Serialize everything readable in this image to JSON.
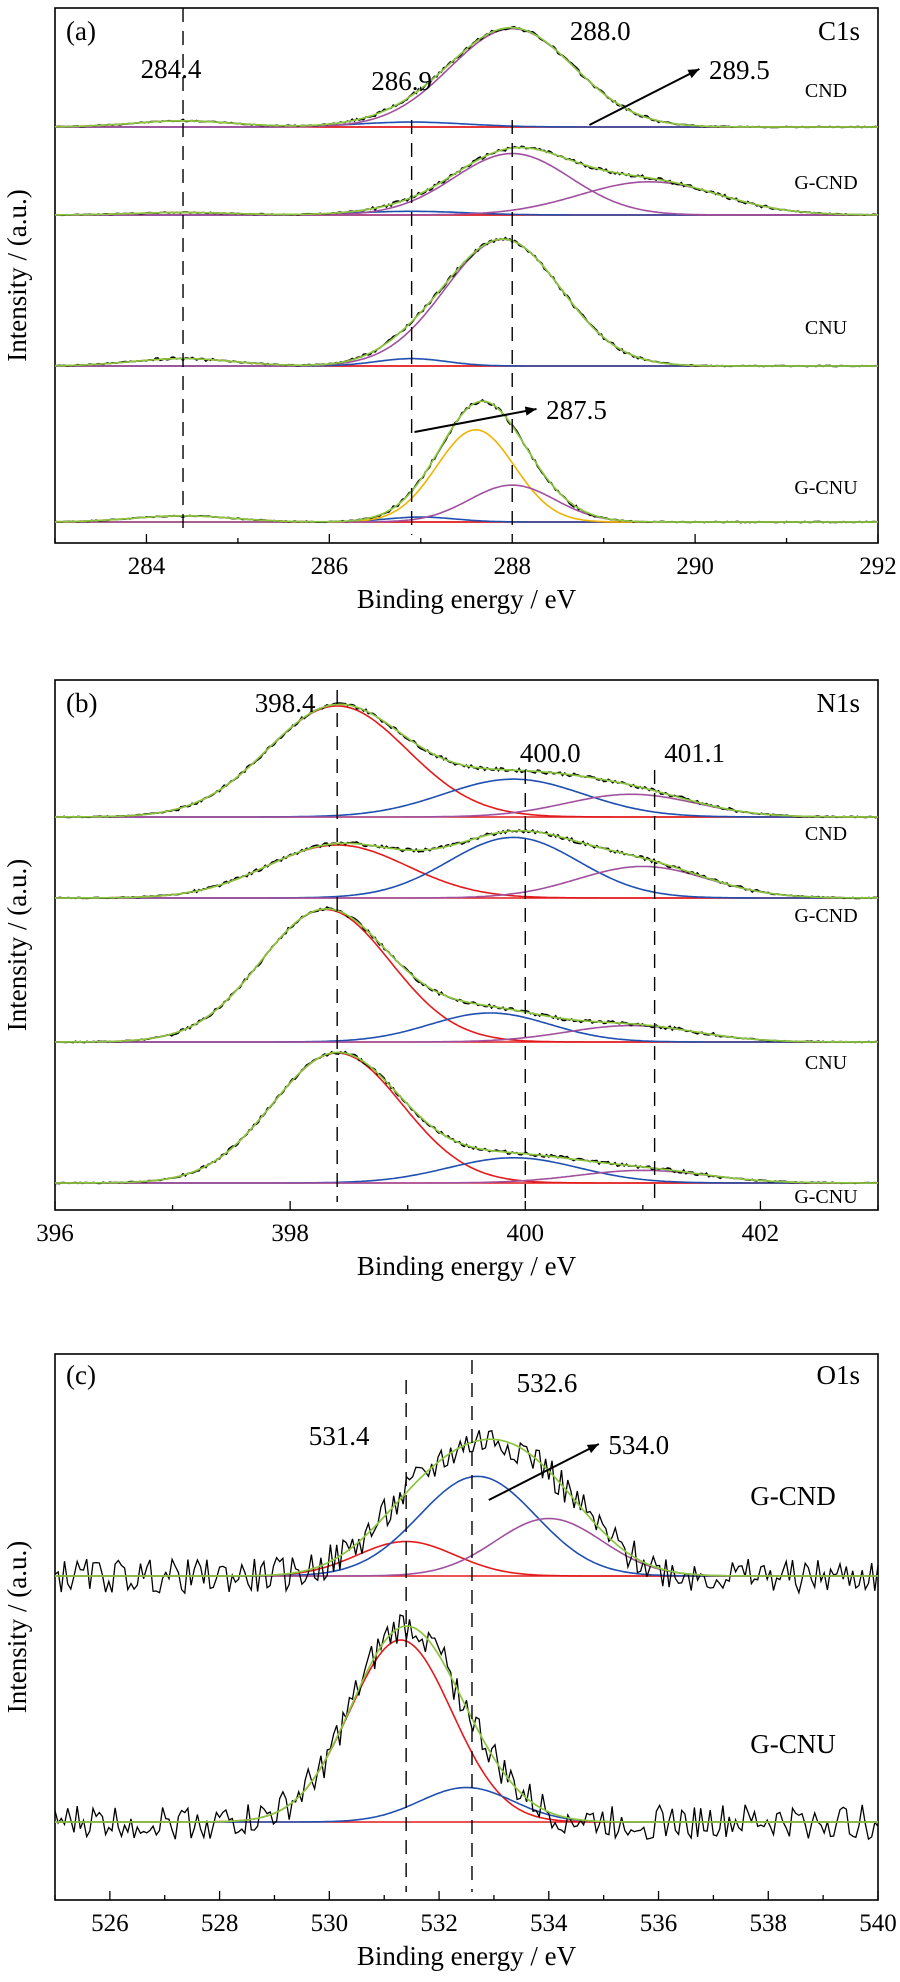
{
  "chart_data": [
    {
      "type": "line",
      "panel_label": "(a)",
      "element": "C1s",
      "xlabel": "Binding energy / eV",
      "ylabel": "Intensity / (a.u.)",
      "xlim": [
        283,
        292
      ],
      "xticks": [
        284,
        286,
        288,
        290,
        292
      ],
      "ylim": [
        0,
        4.35
      ],
      "grid": false,
      "colors": {
        "raw": "#000000",
        "envelope": "#8cc63f",
        "red": "#e31a1c",
        "blue": "#1f4fb0",
        "magenta": "#a0509e",
        "orange": "#f0b400"
      },
      "reference_lines": [
        284.4,
        286.9,
        288.0
      ],
      "annotations": [
        {
          "text": "284.4",
          "x": 284.4
        },
        {
          "text": "286.9",
          "x": 286.9
        },
        {
          "text": "288.0",
          "x": 288.0
        },
        {
          "text": "289.5",
          "x": 289.5,
          "arrow": true
        },
        {
          "text": "287.5",
          "x": 287.5,
          "arrow": true
        }
      ],
      "samples": [
        {
          "name": "CND",
          "peaks": [
            {
              "center": 284.4,
              "height": 0.05,
              "fwhm": 1.3,
              "color": "red"
            },
            {
              "center": 286.9,
              "height": 0.04,
              "fwhm": 1.4,
              "color": "blue"
            },
            {
              "center": 288.0,
              "height": 0.8,
              "fwhm": 1.6,
              "color": "magenta"
            }
          ]
        },
        {
          "name": "G-CND",
          "peaks": [
            {
              "center": 284.4,
              "height": 0.02,
              "fwhm": 1.3,
              "color": "red"
            },
            {
              "center": 286.9,
              "height": 0.03,
              "fwhm": 1.4,
              "color": "blue"
            },
            {
              "center": 288.0,
              "height": 0.5,
              "fwhm": 1.5,
              "color": "magenta"
            },
            {
              "center": 289.5,
              "height": 0.27,
              "fwhm": 1.8,
              "color": "magenta"
            }
          ]
        },
        {
          "name": "CNU",
          "peaks": [
            {
              "center": 284.4,
              "height": 0.06,
              "fwhm": 1.3,
              "color": "red"
            },
            {
              "center": 286.9,
              "height": 0.06,
              "fwhm": 0.9,
              "color": "blue"
            },
            {
              "center": 287.9,
              "height": 1.03,
              "fwhm": 1.5,
              "color": "magenta"
            }
          ]
        },
        {
          "name": "G-CNU",
          "peaks": [
            {
              "center": 284.4,
              "height": 0.05,
              "fwhm": 1.3,
              "color": "red"
            },
            {
              "center": 287.0,
              "height": 0.04,
              "fwhm": 0.9,
              "color": "blue"
            },
            {
              "center": 287.6,
              "height": 0.75,
              "fwhm": 1.0,
              "color": "orange"
            },
            {
              "center": 288.0,
              "height": 0.3,
              "fwhm": 1.1,
              "color": "magenta"
            }
          ]
        }
      ]
    },
    {
      "type": "line",
      "panel_label": "(b)",
      "element": "N1s",
      "xlabel": "Binding energy / eV",
      "ylabel": "Intensity / (a.u.)",
      "xlim": [
        396,
        403
      ],
      "xticks": [
        396,
        398,
        400,
        402
      ],
      "ylim": [
        0,
        4.2
      ],
      "grid": false,
      "reference_lines": [
        398.4,
        400.0,
        401.1
      ],
      "annotations": [
        {
          "text": "398.4",
          "x": 398.4
        },
        {
          "text": "400.0",
          "x": 400.0
        },
        {
          "text": "401.1",
          "x": 401.1
        }
      ],
      "samples": [
        {
          "name": "CND",
          "peaks": [
            {
              "center": 398.4,
              "height": 0.88,
              "fwhm": 1.4,
              "color": "red"
            },
            {
              "center": 399.9,
              "height": 0.3,
              "fwhm": 1.4,
              "color": "blue"
            },
            {
              "center": 400.9,
              "height": 0.18,
              "fwhm": 1.3,
              "color": "magenta"
            }
          ]
        },
        {
          "name": "G-CND",
          "peaks": [
            {
              "center": 398.4,
              "height": 0.42,
              "fwhm": 1.4,
              "color": "red"
            },
            {
              "center": 399.9,
              "height": 0.48,
              "fwhm": 1.3,
              "color": "blue"
            },
            {
              "center": 401.0,
              "height": 0.25,
              "fwhm": 1.3,
              "color": "magenta"
            }
          ]
        },
        {
          "name": "CNU",
          "peaks": [
            {
              "center": 398.3,
              "height": 1.05,
              "fwhm": 1.3,
              "color": "red"
            },
            {
              "center": 399.7,
              "height": 0.23,
              "fwhm": 1.2,
              "color": "blue"
            },
            {
              "center": 400.9,
              "height": 0.13,
              "fwhm": 1.3,
              "color": "magenta"
            }
          ]
        },
        {
          "name": "G-CNU",
          "peaks": [
            {
              "center": 398.4,
              "height": 1.03,
              "fwhm": 1.3,
              "color": "red"
            },
            {
              "center": 399.9,
              "height": 0.2,
              "fwhm": 1.3,
              "color": "blue"
            },
            {
              "center": 401.0,
              "height": 0.1,
              "fwhm": 1.3,
              "color": "magenta"
            }
          ]
        }
      ]
    },
    {
      "type": "line",
      "panel_label": "(c)",
      "element": "O1s",
      "xlabel": "Binding energy / eV",
      "ylabel": "Intensity / (a.u.)",
      "xlim": [
        525,
        540
      ],
      "xticks": [
        526,
        528,
        530,
        532,
        534,
        536,
        538,
        540
      ],
      "ylim": [
        0,
        2.85
      ],
      "grid": false,
      "reference_lines": [
        531.4,
        532.6
      ],
      "annotations": [
        {
          "text": "531.4",
          "x": 531.4
        },
        {
          "text": "532.6",
          "x": 532.6
        },
        {
          "text": "534.0",
          "x": 534.0,
          "arrow": true
        }
      ],
      "samples": [
        {
          "name": "G-CND",
          "peaks": [
            {
              "center": 531.4,
              "height": 0.18,
              "fwhm": 2.1,
              "color": "red"
            },
            {
              "center": 532.7,
              "height": 0.52,
              "fwhm": 2.5,
              "color": "blue"
            },
            {
              "center": 534.0,
              "height": 0.3,
              "fwhm": 2.3,
              "color": "magenta"
            }
          ]
        },
        {
          "name": "G-CNU",
          "peaks": [
            {
              "center": 531.3,
              "height": 0.95,
              "fwhm": 2.2,
              "color": "red"
            },
            {
              "center": 532.5,
              "height": 0.18,
              "fwhm": 2.0,
              "color": "blue"
            }
          ]
        }
      ]
    }
  ]
}
